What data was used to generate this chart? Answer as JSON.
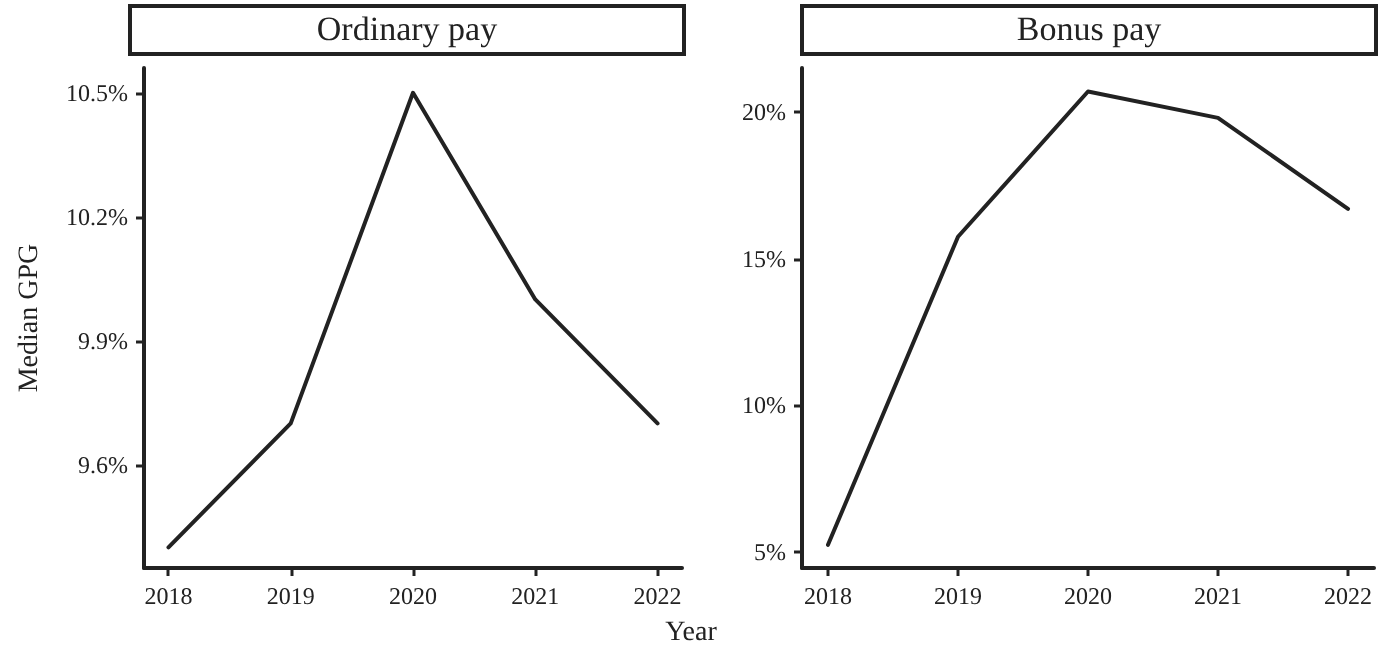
{
  "chart_data": [
    {
      "type": "line",
      "title": "Ordinary pay",
      "ylabel": "Median GPG",
      "xlabel": "Year",
      "x": [
        2018,
        2019,
        2020,
        2021,
        2022
      ],
      "series": [
        {
          "color": "#222222",
          "values": [
            9.4,
            9.7,
            10.5,
            10.0,
            9.7
          ]
        }
      ],
      "xlim": [
        2017.8,
        2022.2
      ],
      "xticks": [
        2018,
        2019,
        2020,
        2021,
        2022
      ],
      "ylim": [
        9.35,
        10.56
      ],
      "yticks": [
        {
          "value": 9.6,
          "label": "9.6%"
        },
        {
          "value": 9.9,
          "label": "9.9%"
        },
        {
          "value": 10.2,
          "label": "10.2%"
        },
        {
          "value": 10.5,
          "label": "10.5%"
        }
      ],
      "marker": "none",
      "line_style": "solid"
    },
    {
      "type": "line",
      "title": "Bonus pay",
      "x": [
        2018,
        2019,
        2020,
        2021,
        2022
      ],
      "series": [
        {
          "color": "#222222",
          "values": [
            5.25,
            15.75,
            20.7,
            19.8,
            16.7
          ]
        }
      ],
      "xlim": [
        2017.8,
        2022.2
      ],
      "xticks": [
        2018,
        2019,
        2020,
        2021,
        2022
      ],
      "ylim": [
        4.46,
        21.5
      ],
      "yticks": [
        {
          "value": 5,
          "label": "5%"
        },
        {
          "value": 10,
          "label": "10%"
        },
        {
          "value": 15,
          "label": "15%"
        },
        {
          "value": 20,
          "label": "20%"
        }
      ],
      "marker": "none",
      "line_style": "solid"
    }
  ]
}
